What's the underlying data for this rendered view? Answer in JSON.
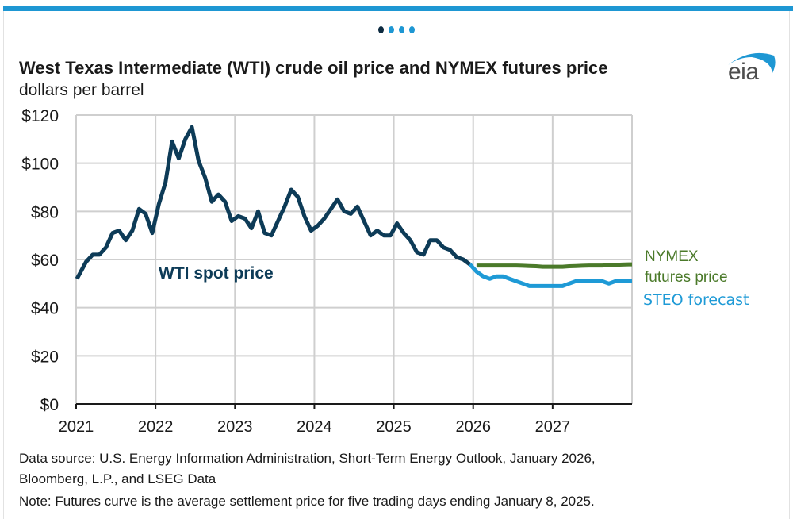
{
  "carousel": {
    "dots": 4,
    "active_index": 0
  },
  "header": {
    "title": "West Texas Intermediate (WTI) crude oil price and NYMEX futures price",
    "subtitle": "dollars per barrel",
    "logo_text": "eia"
  },
  "colors": {
    "wti": "#0d3b57",
    "nymex": "#4b7a2a",
    "steo": "#1e9ad6",
    "grid": "#cfcfcf",
    "topbar": "#1e97d3"
  },
  "chart_data": {
    "type": "line",
    "title": "West Texas Intermediate (WTI) crude oil price and NYMEX futures price",
    "ylabel": "dollars per barrel",
    "xlabel": "",
    "ylim": [
      0,
      120
    ],
    "yticks": [
      0,
      20,
      40,
      60,
      80,
      100,
      120
    ],
    "ytick_labels": [
      "$0",
      "$20",
      "$40",
      "$60",
      "$80",
      "$100",
      "$120"
    ],
    "xlim": [
      "2021-01",
      "2027-12"
    ],
    "xtick_labels": [
      "2021",
      "2022",
      "2023",
      "2024",
      "2025",
      "2026",
      "2027"
    ],
    "grid": true,
    "series": [
      {
        "name": "WTI spot price",
        "label": "WTI spot price",
        "start": "2021-01",
        "frequency": "monthly",
        "values": [
          52,
          59,
          62,
          62,
          65,
          71,
          72,
          68,
          72,
          81,
          79,
          71,
          83,
          92,
          109,
          102,
          110,
          115,
          101,
          94,
          84,
          87,
          84,
          76,
          78,
          77,
          73,
          80,
          71,
          70,
          76,
          82,
          89,
          86,
          78,
          72,
          74,
          77,
          81,
          85,
          80,
          79,
          82,
          76,
          70,
          72,
          70,
          70,
          75,
          71,
          68,
          63,
          62,
          68,
          68,
          65,
          64,
          61,
          60,
          58
        ]
      },
      {
        "name": "STEO forecast",
        "label": "STEO forecast",
        "start": "2025-12",
        "frequency": "monthly",
        "values": [
          58,
          55,
          53,
          52,
          53,
          53,
          52,
          51,
          50,
          49,
          49,
          49,
          49,
          49,
          49,
          50,
          51,
          51,
          51,
          51,
          51,
          50,
          51,
          51,
          51
        ]
      },
      {
        "name": "NYMEX futures price",
        "label_line1": "NYMEX",
        "label_line2": "futures price",
        "start": "2026-01",
        "frequency": "monthly",
        "values": [
          57.5,
          57.5,
          57.5,
          57.5,
          57.5,
          57.5,
          57.5,
          57.4,
          57.3,
          57.2,
          57.0,
          57.0,
          57.0,
          57.0,
          57.2,
          57.3,
          57.4,
          57.5,
          57.5,
          57.5,
          57.7,
          57.8,
          57.9,
          58.0
        ]
      }
    ]
  },
  "footer": {
    "source_line1": "Data source: U.S. Energy Information Administration, Short-Term Energy Outlook, January 2026,",
    "source_line2": "Bloomberg, L.P., and LSEG Data",
    "note": "Note: Futures curve is the average settlement price for five trading days ending January 8, 2025."
  }
}
